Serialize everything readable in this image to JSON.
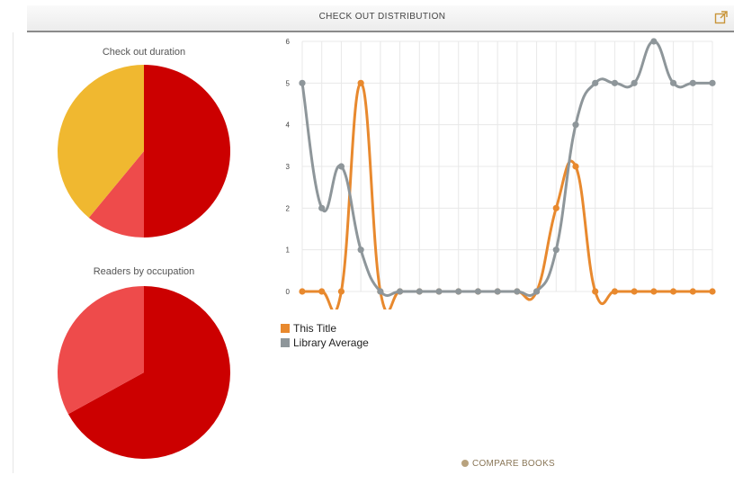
{
  "header": {
    "title": "CHECK OUT DISTRIBUTION",
    "icon": "external-link-icon"
  },
  "compare": {
    "label": "COMPARE BOOKS",
    "icon": "plus-circle-icon"
  },
  "colors": {
    "orange": "#e8892e",
    "gray": "#8e969a",
    "pie_red": "#cc0000",
    "pie_light_red": "#ee4b4b",
    "pie_yellow": "#f0b830",
    "grid": "#e8e8e8"
  },
  "chart_data": [
    {
      "type": "pie",
      "title": "Check out duration",
      "slices": [
        {
          "value": 50,
          "color": "#cc0000"
        },
        {
          "value": 11,
          "color": "#ee4b4b"
        },
        {
          "value": 39,
          "color": "#f0b830"
        }
      ]
    },
    {
      "type": "pie",
      "title": "Readers by occupation",
      "slices": [
        {
          "value": 67,
          "color": "#cc0000"
        },
        {
          "value": 33,
          "color": "#ee4b4b"
        }
      ]
    },
    {
      "type": "line",
      "title": "",
      "xlabel": "",
      "ylabel": "",
      "ylim": [
        0,
        6
      ],
      "yticks": [
        "0",
        "1",
        "2",
        "3",
        "4",
        "5",
        "6"
      ],
      "grid": true,
      "smooth": true,
      "legend_position": "bottom-left",
      "x": [
        1,
        2,
        3,
        4,
        5,
        6,
        7,
        8,
        9,
        10,
        11,
        12,
        13,
        14,
        15,
        16,
        17,
        18,
        19,
        20,
        21,
        22
      ],
      "series": [
        {
          "name": "This Title",
          "color": "#e8892e",
          "values": [
            0,
            0,
            0,
            5,
            0,
            0,
            0,
            0,
            0,
            0,
            0,
            0,
            0,
            2,
            3,
            0,
            0,
            0,
            0,
            0,
            0,
            0
          ]
        },
        {
          "name": "Library Average",
          "color": "#8e969a",
          "values": [
            5,
            2,
            3,
            1,
            0,
            0,
            0,
            0,
            0,
            0,
            0,
            0,
            0,
            1,
            4,
            5,
            5,
            5,
            6,
            5,
            5,
            5
          ]
        }
      ]
    }
  ]
}
